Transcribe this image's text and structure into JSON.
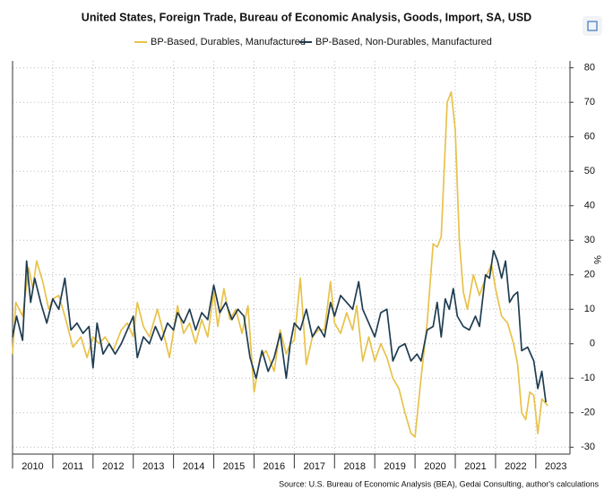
{
  "chart_data": {
    "type": "line",
    "title": "United States, Foreign Trade, Bureau of Economic Analysis, Goods, Import, SA, USD",
    "ylabel": "%",
    "source": "Source: U.S. Bureau of Economic Analysis (BEA), Gedai Consulting, author's calculations",
    "xlim": [
      2010,
      2023.85
    ],
    "xticks": [
      2010,
      2011,
      2012,
      2013,
      2014,
      2015,
      2016,
      2017,
      2018,
      2019,
      2020,
      2021,
      2022,
      2023
    ],
    "ylim": [
      -32,
      82
    ],
    "yticks": [
      -30,
      -20,
      -10,
      0,
      10,
      20,
      30,
      40,
      50,
      60,
      70,
      80
    ],
    "grid": true,
    "legend": "top",
    "series": [
      {
        "name": "BP-Based, Durables, Manufactured",
        "color": "#e8c24a",
        "x": [
          2010.0,
          2010.08,
          2010.25,
          2010.4,
          2010.5,
          2010.6,
          2010.75,
          2010.9,
          2011.0,
          2011.15,
          2011.3,
          2011.5,
          2011.7,
          2011.85,
          2012.0,
          2012.15,
          2012.3,
          2012.5,
          2012.7,
          2012.85,
          2013.0,
          2013.1,
          2013.25,
          2013.4,
          2013.6,
          2013.75,
          2013.9,
          2014.1,
          2014.25,
          2014.4,
          2014.55,
          2014.7,
          2014.85,
          2015.0,
          2015.1,
          2015.25,
          2015.4,
          2015.55,
          2015.7,
          2015.85,
          2016.0,
          2016.15,
          2016.3,
          2016.5,
          2016.65,
          2016.8,
          2016.9,
          2017.0,
          2017.15,
          2017.3,
          2017.45,
          2017.6,
          2017.75,
          2017.9,
          2018.0,
          2018.15,
          2018.3,
          2018.45,
          2018.55,
          2018.7,
          2018.85,
          2019.0,
          2019.15,
          2019.3,
          2019.45,
          2019.6,
          2019.75,
          2019.9,
          2020.0,
          2020.15,
          2020.3,
          2020.45,
          2020.55,
          2020.65,
          2020.8,
          2020.9,
          2021.0,
          2021.1,
          2021.2,
          2021.3,
          2021.45,
          2021.6,
          2021.75,
          2021.9,
          2022.0,
          2022.15,
          2022.3,
          2022.45,
          2022.55,
          2022.65,
          2022.75,
          2022.85,
          2022.95,
          2023.05,
          2023.15,
          2023.3
        ],
        "values": [
          -3,
          12,
          8,
          22,
          16,
          24,
          18,
          10,
          13,
          14,
          8,
          -1,
          2,
          -4,
          2,
          0,
          2,
          -2,
          4,
          6,
          2,
          12,
          5,
          2,
          10,
          3,
          -4,
          11,
          3,
          6,
          0,
          7,
          2,
          15,
          5,
          16,
          7,
          10,
          3,
          11,
          -14,
          -4,
          -2,
          -8,
          4,
          -3,
          0,
          1,
          19,
          -6,
          2,
          4,
          4,
          18,
          6,
          3,
          9,
          4,
          11,
          -5,
          2,
          -5,
          0,
          -4,
          -10,
          -13,
          -20,
          -26,
          -27,
          -10,
          6,
          29,
          28,
          31,
          70,
          73,
          62,
          30,
          15,
          10,
          20,
          14,
          19,
          23,
          16,
          8,
          6,
          0,
          -6,
          -20,
          -22,
          -14,
          -15,
          -26,
          -16,
          -18
        ]
      },
      {
        "name": "BP-Based, Non-Durables, Manufactured",
        "color": "#1f3d52",
        "x": [
          2010.0,
          2010.1,
          2010.25,
          2010.35,
          2010.45,
          2010.55,
          2010.7,
          2010.85,
          2011.0,
          2011.15,
          2011.3,
          2011.45,
          2011.6,
          2011.75,
          2011.9,
          2012.0,
          2012.1,
          2012.25,
          2012.4,
          2012.55,
          2012.7,
          2012.85,
          2013.0,
          2013.1,
          2013.25,
          2013.4,
          2013.55,
          2013.7,
          2013.85,
          2014.0,
          2014.1,
          2014.25,
          2014.4,
          2014.55,
          2014.7,
          2014.85,
          2015.0,
          2015.15,
          2015.3,
          2015.45,
          2015.6,
          2015.75,
          2015.9,
          2016.05,
          2016.2,
          2016.35,
          2016.5,
          2016.65,
          2016.8,
          2016.9,
          2017.0,
          2017.15,
          2017.3,
          2017.45,
          2017.6,
          2017.75,
          2017.9,
          2018.0,
          2018.15,
          2018.3,
          2018.45,
          2018.6,
          2018.7,
          2018.85,
          2019.0,
          2019.15,
          2019.3,
          2019.45,
          2019.6,
          2019.75,
          2019.9,
          2020.05,
          2020.15,
          2020.3,
          2020.45,
          2020.55,
          2020.65,
          2020.75,
          2020.85,
          2020.95,
          2021.05,
          2021.2,
          2021.35,
          2021.5,
          2021.6,
          2021.75,
          2021.85,
          2021.95,
          2022.05,
          2022.15,
          2022.25,
          2022.35,
          2022.45,
          2022.55,
          2022.65,
          2022.8,
          2022.95,
          2023.05,
          2023.15,
          2023.25
        ],
        "values": [
          2,
          8,
          1,
          24,
          12,
          19,
          12,
          6,
          13,
          10,
          19,
          4,
          6,
          3,
          5,
          -7,
          6,
          -3,
          0,
          -3,
          0,
          4,
          8,
          -4,
          2,
          0,
          5,
          1,
          6,
          4,
          9,
          6,
          10,
          4,
          9,
          7,
          17,
          9,
          12,
          7,
          10,
          8,
          -4,
          -10,
          -2,
          -8,
          -4,
          3,
          -10,
          0,
          6,
          4,
          10,
          2,
          5,
          2,
          12,
          8,
          14,
          12,
          10,
          18,
          10,
          6,
          2,
          9,
          10,
          -5,
          -1,
          0,
          -5,
          -3,
          -5,
          4,
          5,
          12,
          2,
          13,
          10,
          16,
          8,
          5,
          4,
          8,
          5,
          20,
          19,
          27,
          24,
          19,
          24,
          12,
          14,
          15,
          -2,
          -1,
          -5,
          -13,
          -8,
          -17
        ]
      }
    ]
  }
}
